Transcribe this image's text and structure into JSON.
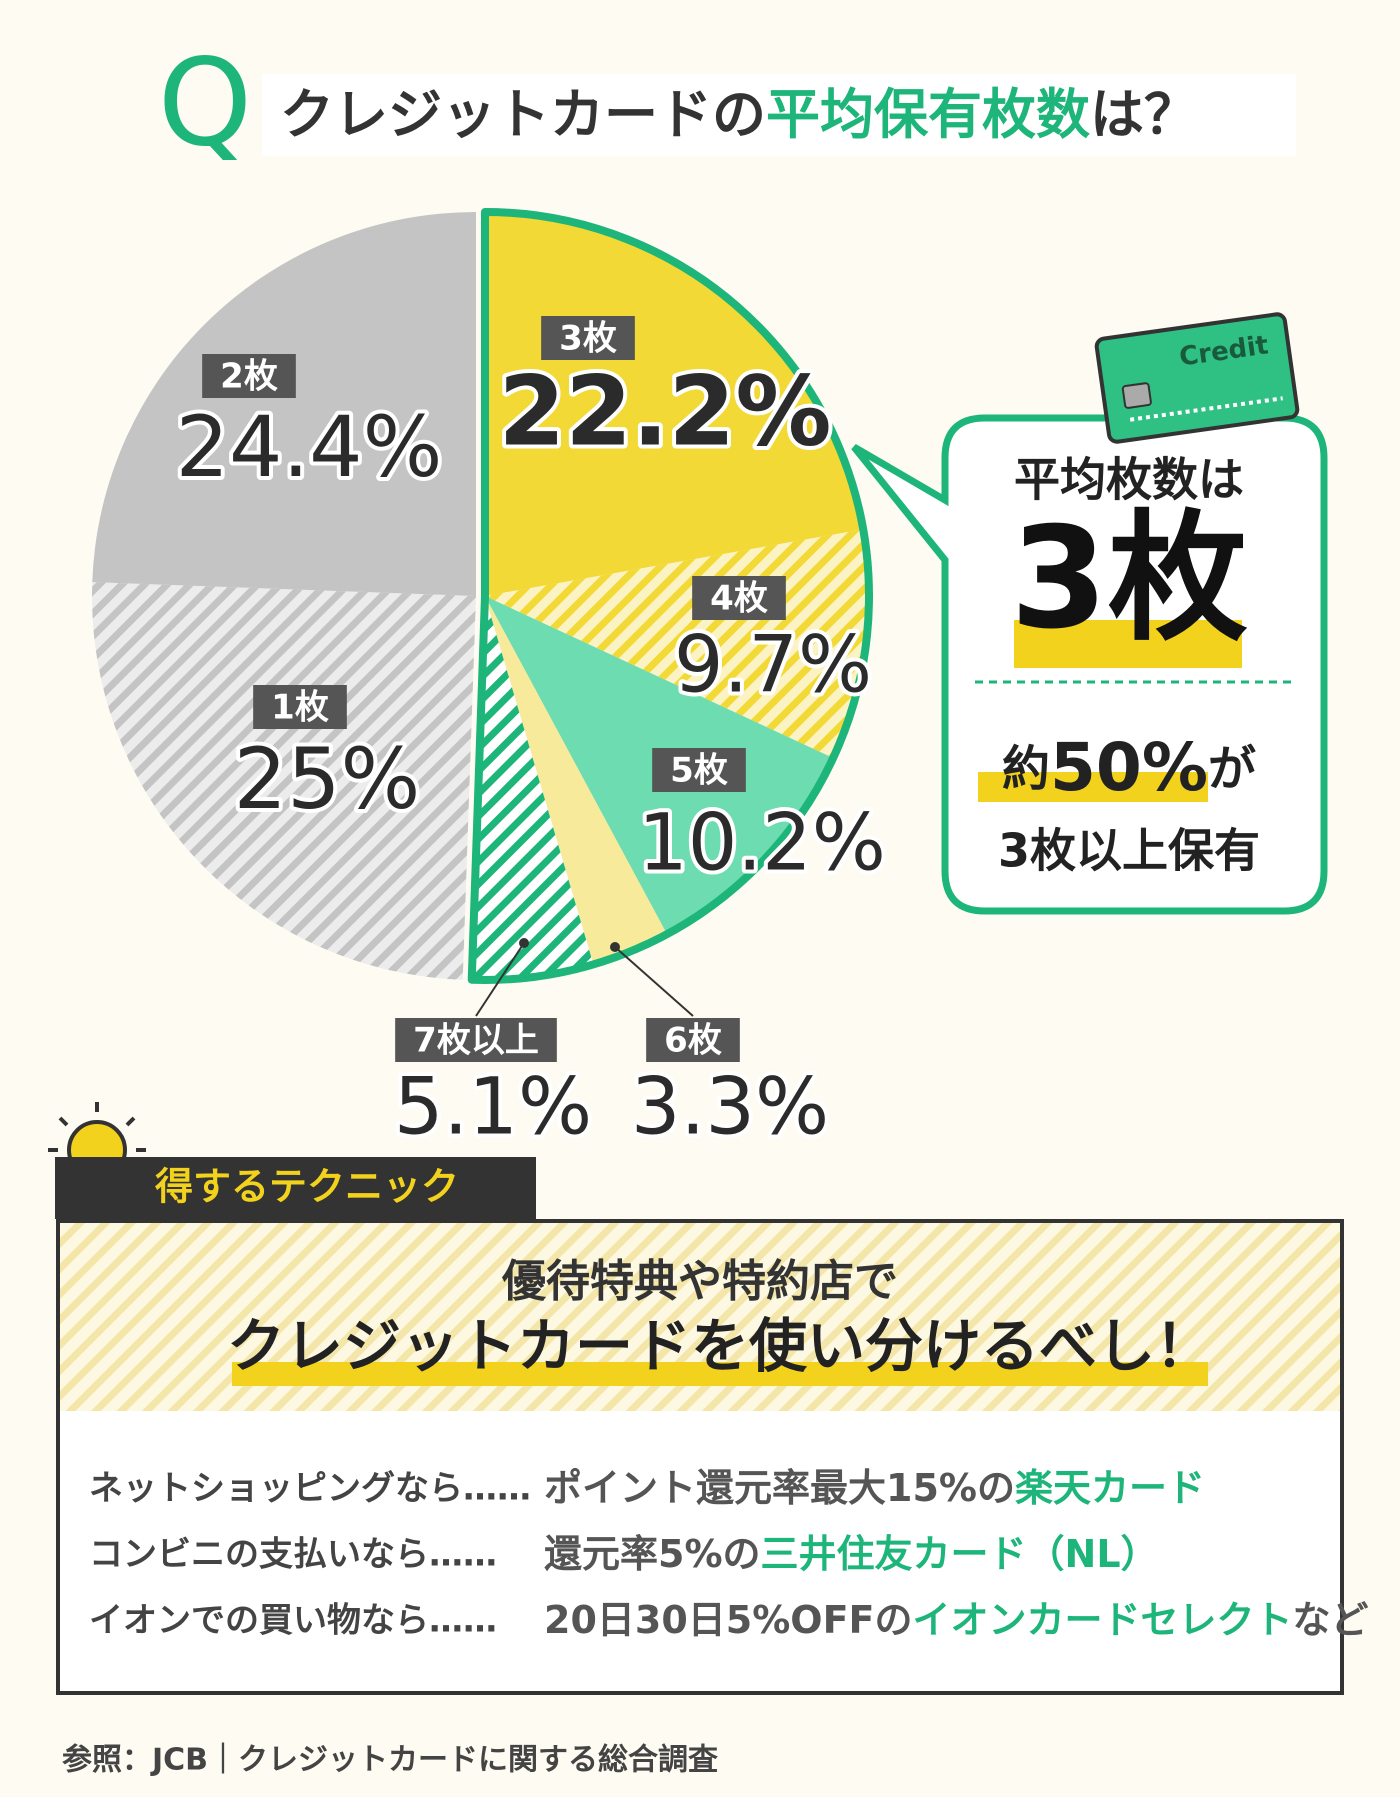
{
  "header": {
    "q": "Q",
    "title_parts": [
      "クレジットカードの",
      "平均保有枚数",
      "は？"
    ]
  },
  "chart_data": {
    "type": "pie",
    "categories": [
      "3枚",
      "4枚",
      "5枚",
      "6枚",
      "7枚以上",
      "1枚",
      "2枚"
    ],
    "values": [
      22.2,
      9.7,
      10.2,
      3.3,
      5.1,
      25,
      24.4
    ],
    "value_labels": [
      "22.2%",
      "9.7%",
      "10.2%",
      "3.3%",
      "5.1%",
      "25%",
      "24.4%"
    ],
    "colors": [
      "#f2d935",
      "#f2d935",
      "#6ddcb0",
      "#f7ea9a",
      "#1db57a",
      "#c4c4c4",
      "#c4c4c4"
    ],
    "hatched": [
      false,
      true,
      false,
      false,
      true,
      true,
      false
    ],
    "highlight_color": "#1db57a"
  },
  "callout": {
    "card": "Credit",
    "line1": "平均枚数は",
    "big": "3枚",
    "pre": "約",
    "num": "50%",
    "post": "が",
    "line3": "3枚以上保有"
  },
  "tips": {
    "badge": "得するテクニック",
    "heading1": "優待特典や特約店で",
    "heading2": "クレジットカードを使い分けるべし！",
    "items": [
      {
        "lead": "ネットショッピングなら……",
        "before": "ポイント還元率最大15%の",
        "card": "楽天カード"
      },
      {
        "lead": "コンビニの支払いなら……",
        "before": "還元率5%の",
        "card": "三井住友カード（NL）"
      },
      {
        "lead": "イオンでの買い物なら……",
        "before": "20日30日5%OFFの",
        "card": "イオンカードセレクト",
        "after": "など"
      }
    ]
  },
  "source": "参照：JCB｜クレジットカードに関する総合調査"
}
